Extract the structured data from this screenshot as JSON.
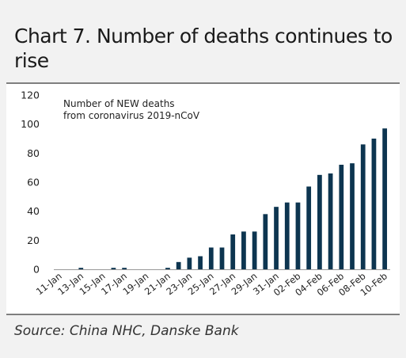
{
  "header": {
    "title": "Chart 7. Number of deaths continues to rise"
  },
  "footer": {
    "source": "Source: China NHC, Danske Bank"
  },
  "chart_data": {
    "type": "bar",
    "annotation_lines": [
      "Number of NEW  deaths",
      "from coronavirus 2019-nCoV"
    ],
    "ylim": [
      0,
      120
    ],
    "yticks": [
      0,
      20,
      40,
      60,
      80,
      100,
      120
    ],
    "grid": false,
    "bar_color": "#0d3550",
    "categories": [
      "11-Jan",
      "12-Jan",
      "13-Jan",
      "14-Jan",
      "15-Jan",
      "16-Jan",
      "17-Jan",
      "18-Jan",
      "19-Jan",
      "20-Jan",
      "21-Jan",
      "22-Jan",
      "23-Jan",
      "24-Jan",
      "25-Jan",
      "26-Jan",
      "27-Jan",
      "28-Jan",
      "29-Jan",
      "30-Jan",
      "31-Jan",
      "01-Feb",
      "02-Feb",
      "03-Feb",
      "04-Feb",
      "05-Feb",
      "06-Feb",
      "07-Feb",
      "08-Feb",
      "09-Feb",
      "10-Feb"
    ],
    "tick_labels": [
      "11-Jan",
      "13-Jan",
      "15-Jan",
      "17-Jan",
      "19-Jan",
      "21-Jan",
      "23-Jan",
      "25-Jan",
      "27-Jan",
      "29-Jan",
      "31-Jan",
      "02-Feb",
      "04-Feb",
      "06-Feb",
      "08-Feb",
      "10-Feb"
    ],
    "values": [
      0,
      0,
      1,
      0,
      0,
      1,
      1,
      0,
      0,
      0,
      1,
      5,
      8,
      9,
      15,
      15,
      24,
      26,
      26,
      38,
      43,
      46,
      46,
      57,
      65,
      66,
      72,
      73,
      86,
      90,
      97
    ]
  }
}
